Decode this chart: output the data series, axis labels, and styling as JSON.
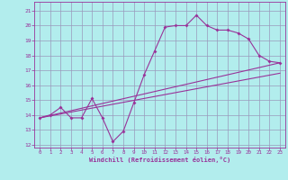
{
  "xlabel": "Windchill (Refroidissement éolien,°C)",
  "bg_color": "#b2eded",
  "grid_color": "#9999bb",
  "line_color": "#993399",
  "x_ticks": [
    0,
    1,
    2,
    3,
    4,
    5,
    6,
    7,
    8,
    9,
    10,
    11,
    12,
    13,
    14,
    15,
    16,
    17,
    18,
    19,
    20,
    21,
    22,
    23
  ],
  "y_ticks": [
    12,
    13,
    14,
    15,
    16,
    17,
    18,
    19,
    20,
    21
  ],
  "ylim": [
    11.8,
    21.6
  ],
  "xlim": [
    -0.5,
    23.5
  ],
  "curve1_x": [
    0,
    1,
    2,
    3,
    4,
    5,
    6,
    7,
    8,
    9,
    10,
    11,
    12,
    13,
    14,
    15,
    16,
    17,
    18,
    19,
    20,
    21,
    22,
    23
  ],
  "curve1_y": [
    13.8,
    14.0,
    14.5,
    13.8,
    13.8,
    15.1,
    13.8,
    12.2,
    12.9,
    14.8,
    16.7,
    18.3,
    19.9,
    20.0,
    20.0,
    20.7,
    20.0,
    19.7,
    19.7,
    19.5,
    19.1,
    18.0,
    17.6,
    17.5
  ],
  "curve2_x": [
    0,
    23
  ],
  "curve2_y": [
    13.8,
    16.8
  ],
  "curve3_x": [
    0,
    23
  ],
  "curve3_y": [
    13.8,
    17.5
  ]
}
